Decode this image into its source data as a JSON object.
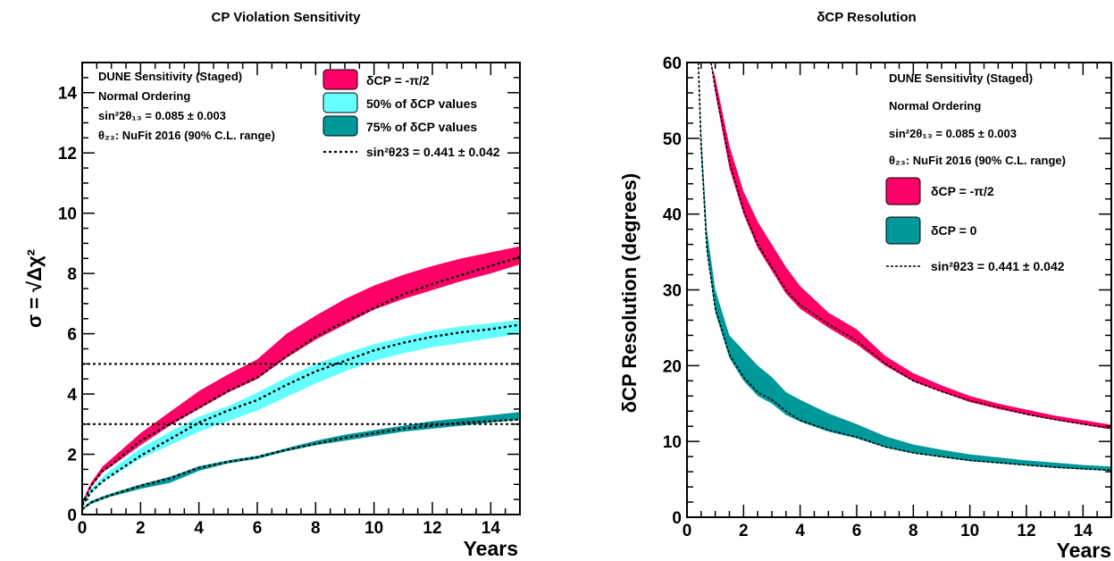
{
  "chart_data": [
    {
      "type": "area",
      "title": "CP Violation Sensitivity",
      "xlabel": "Years",
      "ylabel": "σ = √Δχ²",
      "xlim": [
        0,
        15
      ],
      "ylim": [
        0,
        15
      ],
      "xticks": [
        0,
        2,
        4,
        6,
        8,
        10,
        12,
        14
      ],
      "yticks": [
        0,
        2,
        4,
        6,
        8,
        10,
        12,
        14
      ],
      "notes": [
        "DUNE Sensitivity (Staged)",
        "Normal Ordering",
        "sin²2θ₁₃ = 0.085 ± 0.003",
        "θ₂₃: NuFit 2016 (90% C.L. range)"
      ],
      "legend": [
        "δCP = -π/2",
        "50% of δCP values",
        "75% of δCP values",
        "sin²θ23 = 0.441 ± 0.042"
      ],
      "hlines": [
        5,
        3
      ],
      "series": [
        {
          "name": "δCP = -π/2",
          "color": "#ff0066",
          "x": [
            0,
            0.3,
            0.7,
            1,
            2,
            3,
            4,
            5,
            6,
            7,
            8,
            9,
            10,
            11,
            12,
            13,
            14,
            15
          ],
          "lower": [
            0.3,
            0.9,
            1.4,
            1.6,
            2.3,
            2.95,
            3.5,
            4.05,
            4.5,
            5.2,
            5.8,
            6.3,
            6.8,
            7.15,
            7.45,
            7.75,
            8.0,
            8.3
          ],
          "upper": [
            0.4,
            1.05,
            1.6,
            1.85,
            2.7,
            3.4,
            4.1,
            4.65,
            5.15,
            6.0,
            6.6,
            7.15,
            7.6,
            7.95,
            8.25,
            8.5,
            8.7,
            8.9
          ],
          "central": [
            0.35,
            0.95,
            1.45,
            1.65,
            2.45,
            3.0,
            3.55,
            4.1,
            4.55,
            5.25,
            5.9,
            6.4,
            6.85,
            7.3,
            7.65,
            7.95,
            8.25,
            8.55
          ]
        },
        {
          "name": "50% of δCP values",
          "color": "#66ffff",
          "x": [
            0,
            0.3,
            0.7,
            1,
            2,
            3,
            4,
            5,
            6,
            7,
            8,
            9,
            10,
            11,
            12,
            13,
            14,
            15
          ],
          "lower": [
            0.25,
            0.7,
            1.05,
            1.25,
            1.85,
            2.3,
            2.75,
            3.1,
            3.45,
            3.9,
            4.35,
            4.75,
            5.1,
            5.35,
            5.55,
            5.7,
            5.85,
            6.0
          ],
          "upper": [
            0.35,
            0.85,
            1.25,
            1.5,
            2.2,
            2.75,
            3.25,
            3.6,
            4.05,
            4.55,
            5.0,
            5.35,
            5.65,
            5.9,
            6.1,
            6.25,
            6.35,
            6.45
          ],
          "central": [
            0.3,
            0.75,
            1.1,
            1.3,
            1.95,
            2.5,
            3.05,
            3.45,
            3.8,
            4.3,
            4.75,
            5.1,
            5.45,
            5.7,
            5.9,
            6.05,
            6.15,
            6.3
          ]
        },
        {
          "name": "75% of δCP values",
          "color": "#009999",
          "x": [
            0,
            0.3,
            0.7,
            1,
            2,
            3,
            4,
            5,
            6,
            7,
            8,
            9,
            10,
            11,
            12,
            13,
            14,
            15
          ],
          "lower": [
            0.15,
            0.35,
            0.5,
            0.6,
            0.85,
            1.05,
            1.45,
            1.7,
            1.85,
            2.1,
            2.3,
            2.45,
            2.6,
            2.75,
            2.85,
            2.95,
            3.05,
            3.15
          ],
          "upper": [
            0.2,
            0.45,
            0.6,
            0.7,
            1.0,
            1.25,
            1.6,
            1.8,
            1.95,
            2.2,
            2.45,
            2.65,
            2.8,
            2.95,
            3.1,
            3.2,
            3.3,
            3.4
          ],
          "central": [
            0.18,
            0.4,
            0.55,
            0.65,
            0.95,
            1.2,
            1.55,
            1.75,
            1.9,
            2.15,
            2.35,
            2.55,
            2.7,
            2.85,
            2.95,
            3.05,
            3.1,
            3.15
          ]
        }
      ]
    },
    {
      "type": "area",
      "title": "δCP Resolution",
      "xlabel": "Years",
      "ylabel": "δCP Resolution (degrees)",
      "xlim": [
        0,
        15
      ],
      "ylim": [
        0,
        60
      ],
      "xticks": [
        0,
        2,
        4,
        6,
        8,
        10,
        12,
        14
      ],
      "yticks": [
        0,
        10,
        20,
        30,
        40,
        50,
        60
      ],
      "notes": [
        "DUNE Sensitivity (Staged)",
        "Normal Ordering",
        "sin²2θ₁₃ = 0.085 ± 0.003",
        "θ₂₃: NuFit 2016 (90% C.L. range)"
      ],
      "legend": [
        "δCP = -π/2",
        "δCP = 0",
        "sin²θ23 = 0.441 ± 0.042"
      ],
      "series": [
        {
          "name": "δCP = -π/2",
          "color": "#ff0066",
          "x": [
            0.85,
            1,
            1.5,
            2,
            2.5,
            3,
            3.5,
            4,
            5,
            6,
            7,
            8,
            9,
            10,
            11,
            12,
            13,
            14,
            15
          ],
          "lower": [
            60,
            56,
            46,
            40,
            35.5,
            32.5,
            29.5,
            27.5,
            25.0,
            22.8,
            20.0,
            17.9,
            16.5,
            15.2,
            14.3,
            13.5,
            12.8,
            12.2,
            11.6
          ],
          "upper": [
            60,
            58,
            49,
            43,
            39,
            36,
            33,
            30.5,
            27.0,
            24.8,
            21.3,
            19.0,
            17.4,
            16.0,
            15.0,
            14.2,
            13.4,
            12.8,
            12.2
          ],
          "central": [
            60,
            56.5,
            47,
            40.5,
            36,
            33,
            30,
            28,
            25.5,
            23.3,
            20.3,
            18.0,
            16.6,
            15.4,
            14.5,
            13.6,
            12.9,
            12.3,
            11.7
          ]
        },
        {
          "name": "δCP = 0",
          "color": "#009999",
          "x": [
            0.4,
            0.5,
            0.7,
            1,
            1.5,
            2,
            2.5,
            3,
            3.5,
            4,
            5,
            6,
            7,
            8,
            9,
            10,
            11,
            12,
            13,
            14,
            15
          ],
          "lower": [
            60,
            48,
            35,
            27,
            21,
            18,
            16,
            15,
            13.5,
            12.6,
            11.3,
            10.4,
            9.2,
            8.4,
            7.9,
            7.4,
            7.1,
            6.8,
            6.5,
            6.3,
            6.1
          ],
          "upper": [
            60,
            51,
            38,
            30,
            24,
            22,
            20,
            18.5,
            16.5,
            15.5,
            13.7,
            12.3,
            10.7,
            9.6,
            8.9,
            8.3,
            7.9,
            7.5,
            7.2,
            6.9,
            6.7
          ],
          "central": [
            60,
            49,
            35.5,
            27.5,
            21.5,
            18.5,
            16.5,
            15.5,
            14,
            12.8,
            11.5,
            10.6,
            9.3,
            8.5,
            8.0,
            7.5,
            7.2,
            6.9,
            6.6,
            6.4,
            6.2
          ]
        }
      ]
    }
  ]
}
